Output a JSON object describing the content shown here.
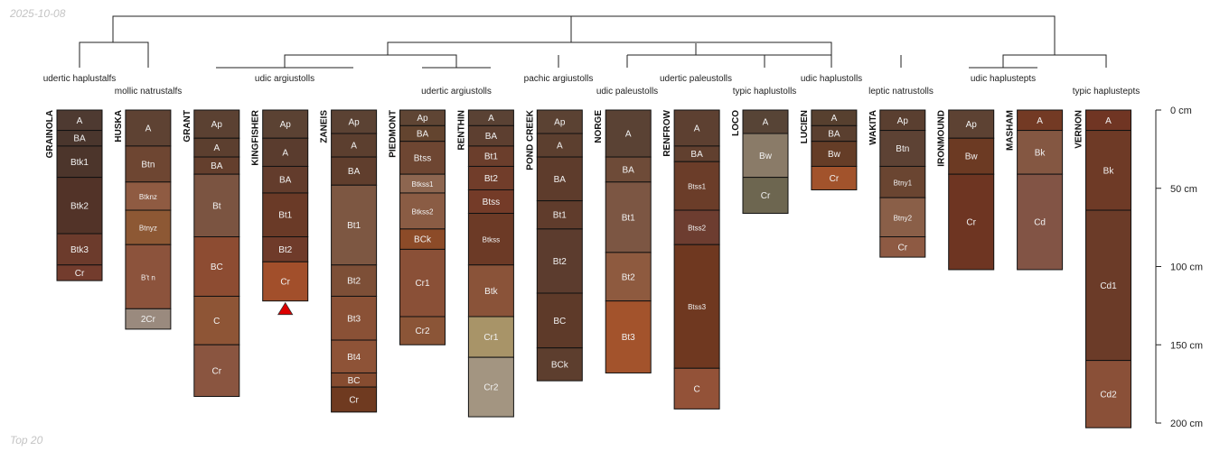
{
  "date": "2025-10-08",
  "footer": "Top 20",
  "depth_axis": {
    "unit": "cm",
    "ticks": [
      0,
      50,
      100,
      150,
      200
    ],
    "labels": [
      "0 cm",
      "50 cm",
      "100 cm",
      "150 cm",
      "200 cm"
    ],
    "max_depth_cm": 200
  },
  "taxa": [
    "udertic haplustalfs",
    "mollic natrustalfs",
    "udic argiustolls",
    "udertic argiustolls",
    "pachic argiustolls",
    "udic paleustolls",
    "udertic paleustolls",
    "typic haplustolls",
    "udic haplustolls",
    "leptic natrustolls",
    "udic haplustepts",
    "typic haplustepts"
  ],
  "profiles": [
    {
      "name": "GRAINOLA",
      "horizons": [
        {
          "name": "A",
          "top": 0,
          "bottom": 13,
          "color": "#4e3a31"
        },
        {
          "name": "BA",
          "top": 13,
          "bottom": 23,
          "color": "#4a362d"
        },
        {
          "name": "Btk1",
          "top": 23,
          "bottom": 43,
          "color": "#4c352b"
        },
        {
          "name": "Btk2",
          "top": 43,
          "bottom": 79,
          "color": "#523328"
        },
        {
          "name": "Btk3",
          "top": 79,
          "bottom": 99,
          "color": "#6c3b2c"
        },
        {
          "name": "Cr",
          "top": 99,
          "bottom": 109,
          "color": "#733c2d"
        }
      ]
    },
    {
      "name": "HUSKA",
      "horizons": [
        {
          "name": "A",
          "top": 0,
          "bottom": 23,
          "color": "#5e4233"
        },
        {
          "name": "Btn",
          "top": 23,
          "bottom": 46,
          "color": "#6e4632"
        },
        {
          "name": "Btknz",
          "top": 46,
          "bottom": 64,
          "color": "#8f5b42"
        },
        {
          "name": "Btnyz",
          "top": 64,
          "bottom": 86,
          "color": "#8d5834"
        },
        {
          "name": "B't n",
          "top": 86,
          "bottom": 127,
          "color": "#8c533c"
        },
        {
          "name": "2Cr",
          "top": 127,
          "bottom": 140,
          "color": "#9a8a7e"
        }
      ]
    },
    {
      "name": "GRANT",
      "horizons": [
        {
          "name": "Ap",
          "top": 0,
          "bottom": 18,
          "color": "#5b4132"
        },
        {
          "name": "A",
          "top": 18,
          "bottom": 30,
          "color": "#5c3f2f"
        },
        {
          "name": "BA",
          "top": 30,
          "bottom": 41,
          "color": "#643f2d"
        },
        {
          "name": "Bt",
          "top": 41,
          "bottom": 81,
          "color": "#7b5441"
        },
        {
          "name": "BC",
          "top": 81,
          "bottom": 119,
          "color": "#8d4c32"
        },
        {
          "name": "C",
          "top": 119,
          "bottom": 150,
          "color": "#8e5536"
        },
        {
          "name": "Cr",
          "top": 150,
          "bottom": 183,
          "color": "#8a5540"
        }
      ]
    },
    {
      "name": "KINGFISHER",
      "horizons": [
        {
          "name": "Ap",
          "top": 0,
          "bottom": 18,
          "color": "#5b4233"
        },
        {
          "name": "A",
          "top": 18,
          "bottom": 36,
          "color": "#5a3c2e"
        },
        {
          "name": "BA",
          "top": 36,
          "bottom": 53,
          "color": "#633c2c"
        },
        {
          "name": "Bt1",
          "top": 53,
          "bottom": 81,
          "color": "#6a3a27"
        },
        {
          "name": "Bt2",
          "top": 81,
          "bottom": 97,
          "color": "#6f3b2a"
        },
        {
          "name": "Cr",
          "top": 97,
          "bottom": 122,
          "color": "#a24f2b"
        }
      ]
    },
    {
      "name": "ZANEIS",
      "horizons": [
        {
          "name": "Ap",
          "top": 0,
          "bottom": 15,
          "color": "#5b4233"
        },
        {
          "name": "A",
          "top": 15,
          "bottom": 30,
          "color": "#5c3f2f"
        },
        {
          "name": "BA",
          "top": 30,
          "bottom": 48,
          "color": "#603e2d"
        },
        {
          "name": "Bt1",
          "top": 48,
          "bottom": 99,
          "color": "#7d5742"
        },
        {
          "name": "Bt2",
          "top": 99,
          "bottom": 119,
          "color": "#7d4f37"
        },
        {
          "name": "Bt3",
          "top": 119,
          "bottom": 147,
          "color": "#8a5136"
        },
        {
          "name": "Bt4",
          "top": 147,
          "bottom": 168,
          "color": "#8e5337"
        },
        {
          "name": "BC",
          "top": 168,
          "bottom": 177,
          "color": "#864c30"
        },
        {
          "name": "Cr",
          "top": 177,
          "bottom": 193,
          "color": "#6f3a20"
        }
      ]
    },
    {
      "name": "PIEDMONT",
      "horizons": [
        {
          "name": "Ap",
          "top": 0,
          "bottom": 10,
          "color": "#5f4534"
        },
        {
          "name": "BA",
          "top": 10,
          "bottom": 20,
          "color": "#63442f"
        },
        {
          "name": "Btss",
          "top": 20,
          "bottom": 41,
          "color": "#6e4632"
        },
        {
          "name": "Btkss1",
          "top": 41,
          "bottom": 53,
          "color": "#8d6650"
        },
        {
          "name": "Btkss2",
          "top": 53,
          "bottom": 76,
          "color": "#8a5c44"
        },
        {
          "name": "BCk",
          "top": 76,
          "bottom": 89,
          "color": "#8c4b28"
        },
        {
          "name": "Cr1",
          "top": 89,
          "bottom": 132,
          "color": "#8a5037"
        },
        {
          "name": "Cr2",
          "top": 132,
          "bottom": 150,
          "color": "#8b5537"
        }
      ]
    },
    {
      "name": "RENTHIN",
      "horizons": [
        {
          "name": "A",
          "top": 0,
          "bottom": 10,
          "color": "#5a4234"
        },
        {
          "name": "BA",
          "top": 10,
          "bottom": 23,
          "color": "#5d3f30"
        },
        {
          "name": "Bt1",
          "top": 23,
          "bottom": 36,
          "color": "#6b3e2c"
        },
        {
          "name": "Bt2",
          "top": 36,
          "bottom": 51,
          "color": "#713d2a"
        },
        {
          "name": "Btss",
          "top": 51,
          "bottom": 66,
          "color": "#743b28"
        },
        {
          "name": "Btkss",
          "top": 66,
          "bottom": 99,
          "color": "#6c3a26"
        },
        {
          "name": "Btk",
          "top": 99,
          "bottom": 132,
          "color": "#8a5339"
        },
        {
          "name": "Cr1",
          "top": 132,
          "bottom": 158,
          "color": "#a89468"
        },
        {
          "name": "Cr2",
          "top": 158,
          "bottom": 196,
          "color": "#a39581"
        }
      ]
    },
    {
      "name": "POND CREEK",
      "horizons": [
        {
          "name": "Ap",
          "top": 0,
          "bottom": 15,
          "color": "#5b4233"
        },
        {
          "name": "A",
          "top": 15,
          "bottom": 30,
          "color": "#5c3f2f"
        },
        {
          "name": "BA",
          "top": 30,
          "bottom": 58,
          "color": "#5e3c2c"
        },
        {
          "name": "Bt1",
          "top": 58,
          "bottom": 76,
          "color": "#603c2c"
        },
        {
          "name": "Bt2",
          "top": 76,
          "bottom": 117,
          "color": "#5c3c2e"
        },
        {
          "name": "BC",
          "top": 117,
          "bottom": 152,
          "color": "#5e3a29"
        },
        {
          "name": "BCk",
          "top": 152,
          "bottom": 173,
          "color": "#5d3e2e"
        }
      ]
    },
    {
      "name": "NORGE",
      "horizons": [
        {
          "name": "A",
          "top": 0,
          "bottom": 30,
          "color": "#5a4234"
        },
        {
          "name": "BA",
          "top": 30,
          "bottom": 46,
          "color": "#6e4b38"
        },
        {
          "name": "Bt1",
          "top": 46,
          "bottom": 91,
          "color": "#7c5643"
        },
        {
          "name": "Bt2",
          "top": 91,
          "bottom": 122,
          "color": "#8e5a3f"
        },
        {
          "name": "Bt3",
          "top": 122,
          "bottom": 168,
          "color": "#a3532c"
        }
      ]
    },
    {
      "name": "RENFROW",
      "horizons": [
        {
          "name": "A",
          "top": 0,
          "bottom": 23,
          "color": "#5d4031"
        },
        {
          "name": "BA",
          "top": 23,
          "bottom": 33,
          "color": "#61402f"
        },
        {
          "name": "Btss1",
          "top": 33,
          "bottom": 64,
          "color": "#6b3d29"
        },
        {
          "name": "Btss2",
          "top": 64,
          "bottom": 86,
          "color": "#6d3d30"
        },
        {
          "name": "Btss3",
          "top": 86,
          "bottom": 165,
          "color": "#6f3820"
        },
        {
          "name": "C",
          "top": 165,
          "bottom": 191,
          "color": "#935238"
        }
      ]
    },
    {
      "name": "LOCO",
      "horizons": [
        {
          "name": "A",
          "top": 0,
          "bottom": 15,
          "color": "#574436"
        },
        {
          "name": "Bw",
          "top": 15,
          "bottom": 43,
          "color": "#8a7b68"
        },
        {
          "name": "Cr",
          "top": 43,
          "bottom": 66,
          "color": "#6d6650"
        }
      ]
    },
    {
      "name": "LUCIEN",
      "horizons": [
        {
          "name": "A",
          "top": 0,
          "bottom": 10,
          "color": "#57402f"
        },
        {
          "name": "BA",
          "top": 10,
          "bottom": 20,
          "color": "#5a3f2f"
        },
        {
          "name": "Bw",
          "top": 20,
          "bottom": 36,
          "color": "#653d27"
        },
        {
          "name": "Cr",
          "top": 36,
          "bottom": 51,
          "color": "#a2532c"
        }
      ]
    },
    {
      "name": "WAKITA",
      "horizons": [
        {
          "name": "Ap",
          "top": 0,
          "bottom": 13,
          "color": "#5a3f30"
        },
        {
          "name": "Btn",
          "top": 13,
          "bottom": 36,
          "color": "#5d4234"
        },
        {
          "name": "Btny1",
          "top": 36,
          "bottom": 56,
          "color": "#6a4531"
        },
        {
          "name": "Btny2",
          "top": 56,
          "bottom": 81,
          "color": "#8a5f48"
        },
        {
          "name": "Cr",
          "top": 81,
          "bottom": 94,
          "color": "#8e5a43"
        }
      ]
    },
    {
      "name": "IRONMOUND",
      "horizons": [
        {
          "name": "Ap",
          "top": 0,
          "bottom": 18,
          "color": "#5d4233"
        },
        {
          "name": "Bw",
          "top": 18,
          "bottom": 41,
          "color": "#6c3a23"
        },
        {
          "name": "Cr",
          "top": 41,
          "bottom": 102,
          "color": "#6e3522"
        }
      ]
    },
    {
      "name": "MASHAM",
      "horizons": [
        {
          "name": "A",
          "top": 0,
          "bottom": 13,
          "color": "#733a24"
        },
        {
          "name": "Bk",
          "top": 13,
          "bottom": 41,
          "color": "#845742"
        },
        {
          "name": "Cd",
          "top": 41,
          "bottom": 102,
          "color": "#825445"
        }
      ]
    },
    {
      "name": "VERNON",
      "horizons": [
        {
          "name": "A",
          "top": 0,
          "bottom": 13,
          "color": "#703523"
        },
        {
          "name": "Bk",
          "top": 13,
          "bottom": 64,
          "color": "#6e3a26"
        },
        {
          "name": "Cd1",
          "top": 64,
          "bottom": 160,
          "color": "#6b3b28"
        },
        {
          "name": "Cd2",
          "top": 160,
          "bottom": 203,
          "color": "#8a5038"
        }
      ]
    }
  ],
  "marker": {
    "profile": "KINGFISHER",
    "symbol": "triangle",
    "color": "#dd0000"
  }
}
